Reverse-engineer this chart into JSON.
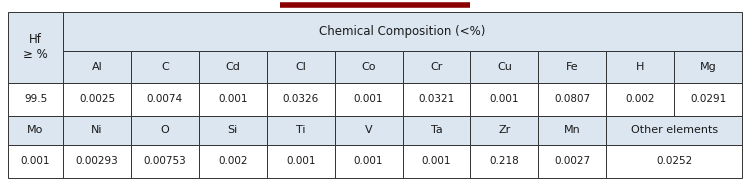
{
  "title_bar_color": "#8b0000",
  "header_bg": "#dce6f1",
  "table_border_color": "#333333",
  "cell_bg_white": "#ffffff",
  "font_color": "#1a1a1a",
  "row1_span_label": "Chemical Composition (<%)",
  "hf_label": "Hf\n≥ %",
  "elements_row1": [
    "Al",
    "C",
    "Cd",
    "Cl",
    "Co",
    "Cr",
    "Cu",
    "Fe",
    "H",
    "Mg"
  ],
  "row2_values": [
    "99.5",
    "0.0025",
    "0.0074",
    "0.001",
    "0.0326",
    "0.001",
    "0.0321",
    "0.001",
    "0.0807",
    "0.002",
    "0.0291"
  ],
  "row3_labels": [
    "Mo",
    "Ni",
    "O",
    "Si",
    "Ti",
    "V",
    "Ta",
    "Zr",
    "Mn",
    "Other elements"
  ],
  "row4_values": [
    "0.001",
    "0.00293",
    "0.00753",
    "0.002",
    "0.001",
    "0.001",
    "0.001",
    "0.218",
    "0.0027",
    "0.0252"
  ],
  "fig_width": 7.5,
  "fig_height": 1.81,
  "dpi": 100
}
